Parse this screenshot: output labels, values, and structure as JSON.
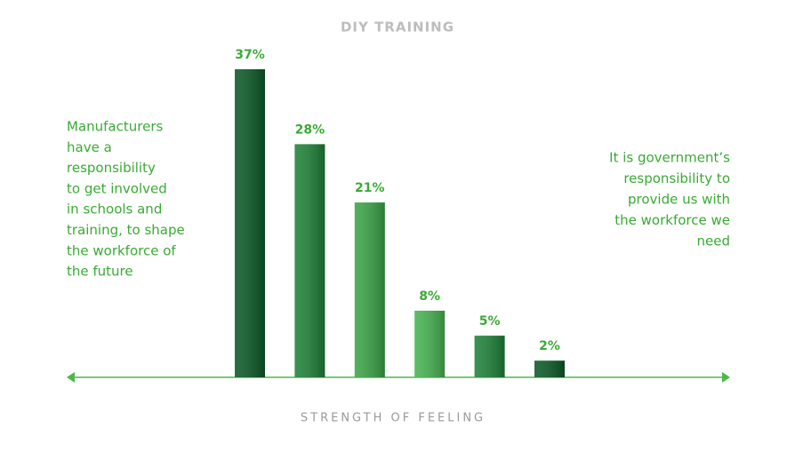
{
  "chart_data": {
    "type": "bar",
    "title": "DIY TRAINING",
    "x_label": "STRENGTH OF FEELING",
    "annotation_left": [
      "Manufacturers",
      "have a",
      "responsibility",
      "to get involved",
      "in schools and",
      "training, to shape",
      "the workforce of",
      "the future"
    ],
    "annotation_right": [
      "It is government’s",
      "responsibility to",
      "provide us with",
      "the workforce we",
      "need"
    ],
    "categories": [
      null,
      null,
      null,
      null,
      null,
      null
    ],
    "values": [
      37,
      28,
      21,
      8,
      5,
      2
    ],
    "value_labels": [
      "37%",
      "28%",
      "21%",
      "8%",
      "5%",
      "2%"
    ],
    "colors": [
      "#0b5a27",
      "#1e8238",
      "#3aa547",
      "#46b451",
      "#1e8238",
      "#0b5a27"
    ],
    "text_color": "#3aaa35",
    "axis_color": "#4cb848"
  }
}
